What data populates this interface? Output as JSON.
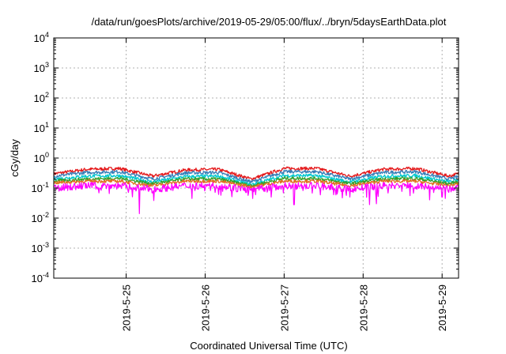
{
  "chart_data": {
    "type": "line",
    "title": "/data/run/goesPlots/archive/2019-05-29/05:00/flux/../bryn/5daysEarthData.plot",
    "xlabel": "Coordinated Universal Time (UTC)",
    "ylabel": "cGy/day",
    "y_scale": "log",
    "ylim": [
      0.0001,
      10000
    ],
    "xlim": [
      "2019-05-24 02:00",
      "2019-05-29 05:00"
    ],
    "grid": true,
    "y_ticks": [
      {
        "value": 0.0001,
        "base": "10",
        "exp": "-4"
      },
      {
        "value": 0.001,
        "base": "10",
        "exp": "-3"
      },
      {
        "value": 0.01,
        "base": "10",
        "exp": "-2"
      },
      {
        "value": 0.1,
        "base": "10",
        "exp": "-1"
      },
      {
        "value": 1,
        "base": "10",
        "exp": "0"
      },
      {
        "value": 10,
        "base": "10",
        "exp": "1"
      },
      {
        "value": 100,
        "base": "10",
        "exp": "2"
      },
      {
        "value": 1000,
        "base": "10",
        "exp": "3"
      },
      {
        "value": 10000,
        "base": "10",
        "exp": "4"
      }
    ],
    "x_ticks": [
      "2019-5-25",
      "2019-5-26",
      "2019-5-27",
      "2019-5-28",
      "2019-5-29"
    ],
    "series": [
      {
        "color": "#e41a1c",
        "x": [
          "2019-05-24 02:00",
          "2019-05-24 12:00",
          "2019-05-24 22:00",
          "2019-05-25 08:00",
          "2019-05-25 18:00",
          "2019-05-26 04:00",
          "2019-05-26 14:00",
          "2019-05-27 00:00",
          "2019-05-27 10:00",
          "2019-05-27 20:00",
          "2019-05-28 06:00",
          "2019-05-28 16:00",
          "2019-05-29 02:00",
          "2019-05-29 05:00"
        ],
        "y": [
          0.3,
          0.42,
          0.45,
          0.25,
          0.4,
          0.42,
          0.2,
          0.45,
          0.45,
          0.25,
          0.42,
          0.45,
          0.25,
          0.3
        ]
      },
      {
        "color": "#377eb8",
        "x": [
          "2019-05-24 02:00",
          "2019-05-24 12:00",
          "2019-05-24 22:00",
          "2019-05-25 08:00",
          "2019-05-25 18:00",
          "2019-05-26 04:00",
          "2019-05-26 14:00",
          "2019-05-27 00:00",
          "2019-05-27 10:00",
          "2019-05-27 20:00",
          "2019-05-28 06:00",
          "2019-05-28 16:00",
          "2019-05-29 02:00",
          "2019-05-29 05:00"
        ],
        "y": [
          0.25,
          0.33,
          0.35,
          0.2,
          0.32,
          0.33,
          0.16,
          0.35,
          0.35,
          0.2,
          0.33,
          0.35,
          0.2,
          0.24
        ]
      },
      {
        "color": "#00c8d0",
        "x": [
          "2019-05-24 02:00",
          "2019-05-24 12:00",
          "2019-05-24 22:00",
          "2019-05-25 08:00",
          "2019-05-25 18:00",
          "2019-05-26 04:00",
          "2019-05-26 14:00",
          "2019-05-27 00:00",
          "2019-05-27 10:00",
          "2019-05-27 20:00",
          "2019-05-28 06:00",
          "2019-05-28 16:00",
          "2019-05-29 02:00",
          "2019-05-29 05:00"
        ],
        "y": [
          0.2,
          0.25,
          0.26,
          0.16,
          0.24,
          0.25,
          0.13,
          0.26,
          0.26,
          0.16,
          0.25,
          0.26,
          0.16,
          0.19
        ]
      },
      {
        "color": "#33a02c",
        "x": [
          "2019-05-24 02:00",
          "2019-05-24 12:00",
          "2019-05-24 22:00",
          "2019-05-25 08:00",
          "2019-05-25 18:00",
          "2019-05-26 04:00",
          "2019-05-26 14:00",
          "2019-05-27 00:00",
          "2019-05-27 10:00",
          "2019-05-27 20:00",
          "2019-05-28 06:00",
          "2019-05-28 16:00",
          "2019-05-29 02:00",
          "2019-05-29 05:00"
        ],
        "y": [
          0.17,
          0.2,
          0.21,
          0.14,
          0.2,
          0.2,
          0.12,
          0.21,
          0.21,
          0.14,
          0.2,
          0.21,
          0.14,
          0.16
        ]
      },
      {
        "color": "#e07020",
        "x": [
          "2019-05-24 02:00",
          "2019-05-24 12:00",
          "2019-05-24 22:00",
          "2019-05-25 08:00",
          "2019-05-25 18:00",
          "2019-05-26 04:00",
          "2019-05-26 14:00",
          "2019-05-27 00:00",
          "2019-05-27 10:00",
          "2019-05-27 20:00",
          "2019-05-28 06:00",
          "2019-05-28 16:00",
          "2019-05-29 02:00",
          "2019-05-29 05:00"
        ],
        "y": [
          0.15,
          0.17,
          0.17,
          0.12,
          0.17,
          0.17,
          0.11,
          0.17,
          0.17,
          0.12,
          0.17,
          0.17,
          0.12,
          0.14
        ]
      },
      {
        "color": "#ff00ff",
        "x": [
          "2019-05-24 02:00",
          "2019-05-24 12:00",
          "2019-05-24 22:00",
          "2019-05-25 08:00",
          "2019-05-25 18:00",
          "2019-05-26 04:00",
          "2019-05-26 14:00",
          "2019-05-27 00:00",
          "2019-05-27 10:00",
          "2019-05-27 20:00",
          "2019-05-28 06:00",
          "2019-05-28 16:00",
          "2019-05-29 02:00",
          "2019-05-29 05:00"
        ],
        "y": [
          0.1,
          0.12,
          0.12,
          0.09,
          0.12,
          0.12,
          0.085,
          0.12,
          0.12,
          0.09,
          0.12,
          0.12,
          0.09,
          0.1
        ]
      }
    ],
    "dips": [
      {
        "x": "2019-05-25 04:00",
        "y": 0.014
      },
      {
        "x": "2019-05-25 20:00",
        "y": 0.045
      },
      {
        "x": "2019-05-26 20:00",
        "y": 0.05
      },
      {
        "x": "2019-05-27 03:00",
        "y": 0.028
      },
      {
        "x": "2019-05-27 20:00",
        "y": 0.05
      },
      {
        "x": "2019-05-28 02:00",
        "y": 0.028
      },
      {
        "x": "2019-05-28 04:00",
        "y": 0.03
      },
      {
        "x": "2019-05-29 00:00",
        "y": 0.05
      }
    ]
  }
}
